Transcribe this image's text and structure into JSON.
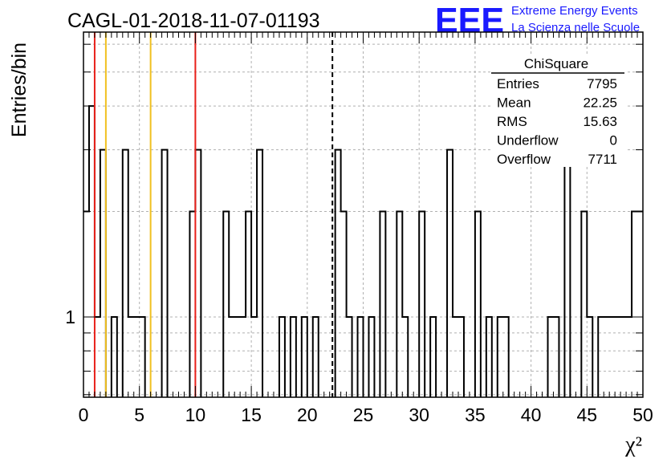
{
  "header": {
    "title": "CAGL-01-2018-11-07-01193",
    "logo_text": "EEE",
    "logo_line1": "Extreme Energy Events",
    "logo_line2": "La Scienza nelle Scuole",
    "logo_color": "#1a1aff"
  },
  "stats": {
    "name": "ChiSquare",
    "rows": [
      {
        "label": "Entries",
        "value": "7795"
      },
      {
        "label": "Mean",
        "value": "22.25"
      },
      {
        "label": "RMS",
        "value": "15.63"
      },
      {
        "label": "Underflow",
        "value": "0"
      },
      {
        "label": "Overflow",
        "value": "7711"
      }
    ]
  },
  "chart_data": {
    "type": "histogram",
    "title": "CAGL-01-2018-11-07-01193",
    "xlabel": "χ²",
    "ylabel": "Entries/bin",
    "xlim": [
      0,
      50
    ],
    "ylim": [
      0.59,
      6.5
    ],
    "log_y": true,
    "grid": true,
    "bin_width": 0.5,
    "x_ticks": [
      "0",
      "5",
      "10",
      "15",
      "20",
      "25",
      "30",
      "35",
      "40",
      "45",
      "50"
    ],
    "y_tick_labels": [
      "1"
    ],
    "counts": [
      2,
      4,
      1,
      3,
      0,
      1,
      0,
      3,
      1,
      1,
      1,
      0,
      0,
      0,
      3,
      0,
      0,
      0,
      0,
      2,
      3,
      0,
      0,
      0,
      0,
      2,
      1,
      1,
      1,
      2,
      1,
      3,
      0,
      0,
      0,
      1,
      0,
      1,
      0,
      1,
      0,
      1,
      0,
      0,
      0,
      3,
      2,
      1,
      0,
      1,
      0,
      1,
      0,
      2,
      0,
      0,
      2,
      1,
      0,
      0,
      2,
      0,
      1,
      0,
      0,
      3,
      1,
      1,
      0,
      0,
      2,
      0,
      1,
      0,
      1,
      1,
      0,
      0,
      0,
      0,
      0,
      0,
      0,
      1,
      1,
      0,
      3,
      0,
      0,
      2,
      1,
      0,
      1,
      1,
      1,
      1,
      1,
      1,
      2,
      2
    ],
    "vlines": [
      {
        "x": 1,
        "color": "#e8201a",
        "style": "solid"
      },
      {
        "x": 2,
        "color": "#f0c020",
        "style": "solid"
      },
      {
        "x": 6,
        "color": "#f0c020",
        "style": "solid"
      },
      {
        "x": 10,
        "color": "#e8201a",
        "style": "solid"
      },
      {
        "x": 22.25,
        "color": "#000000",
        "style": "dashed"
      }
    ]
  }
}
